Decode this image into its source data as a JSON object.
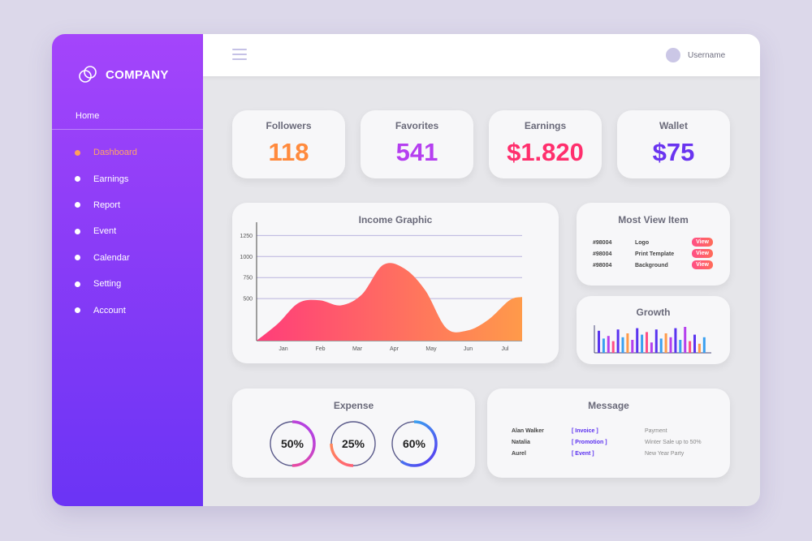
{
  "brand": {
    "name": "COMPANY"
  },
  "sidebar": {
    "home_label": "Home",
    "items": [
      {
        "label": "Dashboard",
        "active": true
      },
      {
        "label": "Earnings",
        "active": false
      },
      {
        "label": "Report",
        "active": false
      },
      {
        "label": "Event",
        "active": false
      },
      {
        "label": "Calendar",
        "active": false
      },
      {
        "label": "Setting",
        "active": false
      },
      {
        "label": "Account",
        "active": false
      }
    ]
  },
  "topbar": {
    "username": "Username"
  },
  "stats": [
    {
      "label": "Followers",
      "value": "118",
      "color": "#ff8a3d"
    },
    {
      "label": "Favorites",
      "value": "541",
      "color": "#b53ff0"
    },
    {
      "label": "Earnings",
      "value": "$1.820",
      "color": "#ff2f6d"
    },
    {
      "label": "Wallet",
      "value": "$75",
      "color": "#6a34f0"
    }
  ],
  "income": {
    "title": "Income Graphic",
    "chart_data": {
      "type": "area",
      "categories": [
        "Jan",
        "Feb",
        "Mar",
        "Apr",
        "May",
        "Jun",
        "Jul"
      ],
      "y_ticks": [
        500,
        750,
        1000,
        1250
      ],
      "ylim": [
        0,
        1350
      ],
      "x": [
        0,
        0.5,
        1.0,
        1.5,
        2.0,
        2.5,
        3.0,
        3.5,
        4.0,
        4.5,
        5.0,
        5.5,
        6.0,
        6.3
      ],
      "values": [
        0,
        200,
        450,
        480,
        420,
        550,
        900,
        860,
        600,
        150,
        120,
        250,
        480,
        520
      ],
      "gradient": [
        "#ff3d7a",
        "#ff9a4a"
      ]
    }
  },
  "most_view": {
    "title": "Most View Item",
    "items": [
      {
        "id": "#98004",
        "name": "Logo",
        "action": "View"
      },
      {
        "id": "#98004",
        "name": "Print Template",
        "action": "View"
      },
      {
        "id": "#98004",
        "name": "Background",
        "action": "View"
      }
    ]
  },
  "growth": {
    "title": "Growth",
    "chart_data": {
      "type": "bar",
      "values": [
        0.85,
        0.55,
        0.65,
        0.45,
        0.9,
        0.6,
        0.75,
        0.5,
        0.95,
        0.7,
        0.8,
        0.4,
        0.9,
        0.55,
        0.75,
        0.6,
        0.95,
        0.5,
        1.0,
        0.45,
        0.7,
        0.35,
        0.6
      ],
      "colors": [
        "#5a34f0",
        "#3aa0f0",
        "#b540ee",
        "#ff4e86",
        "#5a34f0",
        "#3aa0f0",
        "#ff9a4a",
        "#b540ee",
        "#5a34f0",
        "#3aa0f0",
        "#ff4e86",
        "#b540ee",
        "#5a34f0",
        "#3aa0f0",
        "#ff9a4a",
        "#b540ee",
        "#5a34f0",
        "#3aa0f0",
        "#b540ee",
        "#ff4e86",
        "#5a34f0",
        "#ff9a4a",
        "#3aa0f0"
      ]
    }
  },
  "expense": {
    "title": "Expense",
    "rings": [
      {
        "label": "50%",
        "gradient": [
          "#ff4e86",
          "#a83ff0"
        ]
      },
      {
        "label": "25%",
        "gradient": [
          "#ff9a4a",
          "#8a3ff0"
        ]
      },
      {
        "label": "60%",
        "gradient": [
          "#30c4f0",
          "#5a34f0"
        ]
      }
    ]
  },
  "message": {
    "title": "Message",
    "items": [
      {
        "name": "Alan Walker",
        "tag": "[ Invoice ]",
        "text": "Payment"
      },
      {
        "name": "Natalia",
        "tag": "[ Promotion ]",
        "text": "Winter Sale up to 50%"
      },
      {
        "name": "Aurel",
        "tag": "[ Event ]",
        "text": "New Year Party"
      }
    ]
  }
}
